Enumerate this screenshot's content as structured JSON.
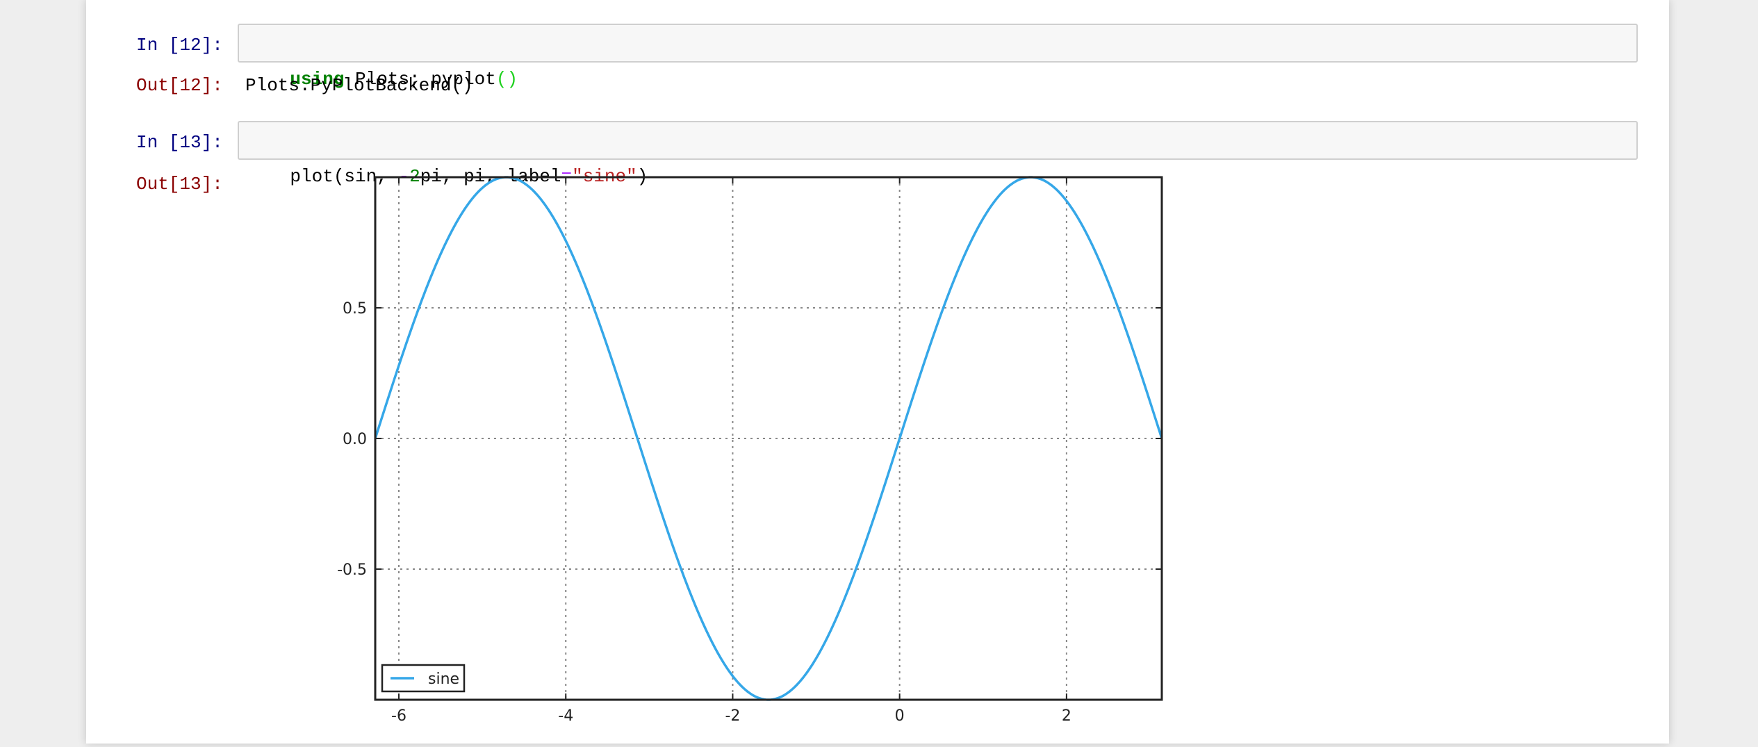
{
  "cells": [
    {
      "in_prompt": "In [12]:",
      "code_tokens": [
        {
          "text": "using",
          "cls": "kw"
        },
        {
          "text": " Plots; pyplot",
          "cls": ""
        },
        {
          "text": "()",
          "cls": "paren"
        }
      ],
      "out_prompt": "Out[12]:",
      "output_text": "Plots.PyPlotBackend()"
    },
    {
      "in_prompt": "In [13]:",
      "code_tokens": [
        {
          "text": "plot(sin, ",
          "cls": ""
        },
        {
          "text": "-",
          "cls": "op"
        },
        {
          "text": "2",
          "cls": "num"
        },
        {
          "text": "pi, pi, label",
          "cls": ""
        },
        {
          "text": "=",
          "cls": "op"
        },
        {
          "text": "\"sine\"",
          "cls": "str"
        },
        {
          "text": ")",
          "cls": ""
        }
      ],
      "out_prompt": "Out[13]:"
    }
  ],
  "chart_data": {
    "type": "line",
    "function": "sin",
    "xlim": [
      -6.283185,
      3.141593
    ],
    "ylim": [
      -1,
      1
    ],
    "xticks": [
      -6,
      -4,
      -2,
      0,
      2
    ],
    "xtick_labels": [
      "-6",
      "-4",
      "-2",
      "0",
      "2"
    ],
    "yticks": [
      0.5,
      0.0,
      -0.5
    ],
    "ytick_labels": [
      "0.5",
      "0.0",
      "-0.5"
    ],
    "grid": true,
    "legend_position": "bottom-left",
    "series": [
      {
        "name": "sine",
        "color": "#35a7e8",
        "expression": "sin(x)",
        "x_range": [
          -6.283185,
          3.141593
        ]
      }
    ]
  },
  "colors": {
    "line": "#35a7e8",
    "grid": "#888888",
    "axes": "#222222"
  }
}
